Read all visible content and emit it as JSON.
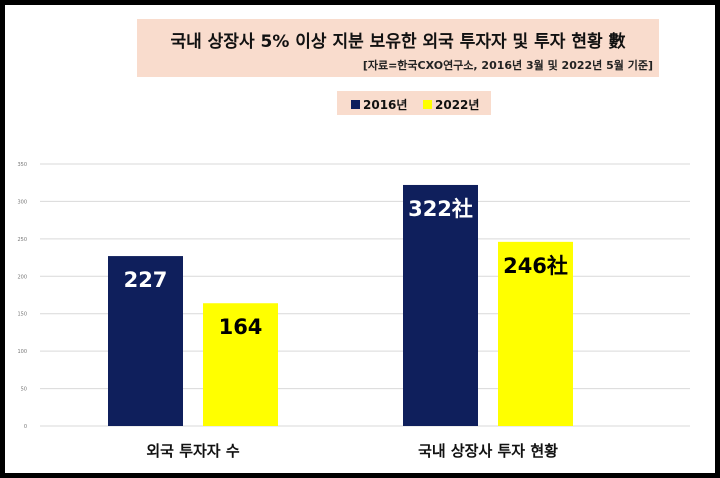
{
  "chart_data": {
    "type": "bar",
    "title": "국내 상장사 5% 이상 지분 보유한 외국 투자자 및 투자 현황 數",
    "subtitle": "[자료=한국CXO연구소, 2016년 3월 및 2022년 5월 기준]",
    "categories": [
      "외국 투자자 수",
      "국내 상장사 투자 현황"
    ],
    "series": [
      {
        "name": "2016년",
        "values": [
          227,
          322
        ],
        "labels": [
          "227",
          "322社"
        ],
        "color": "#0f1f5c",
        "label_color": "#ffffff"
      },
      {
        "name": "2022년",
        "values": [
          164,
          246
        ],
        "labels": [
          "164",
          "246社"
        ],
        "color": "#ffff00",
        "label_color": "#000000"
      }
    ],
    "yticks": [
      "0",
      "50",
      "100",
      "150",
      "200",
      "250",
      "300",
      "350"
    ],
    "ylim": [
      0,
      350
    ],
    "grid": true,
    "legend": "top-center"
  }
}
